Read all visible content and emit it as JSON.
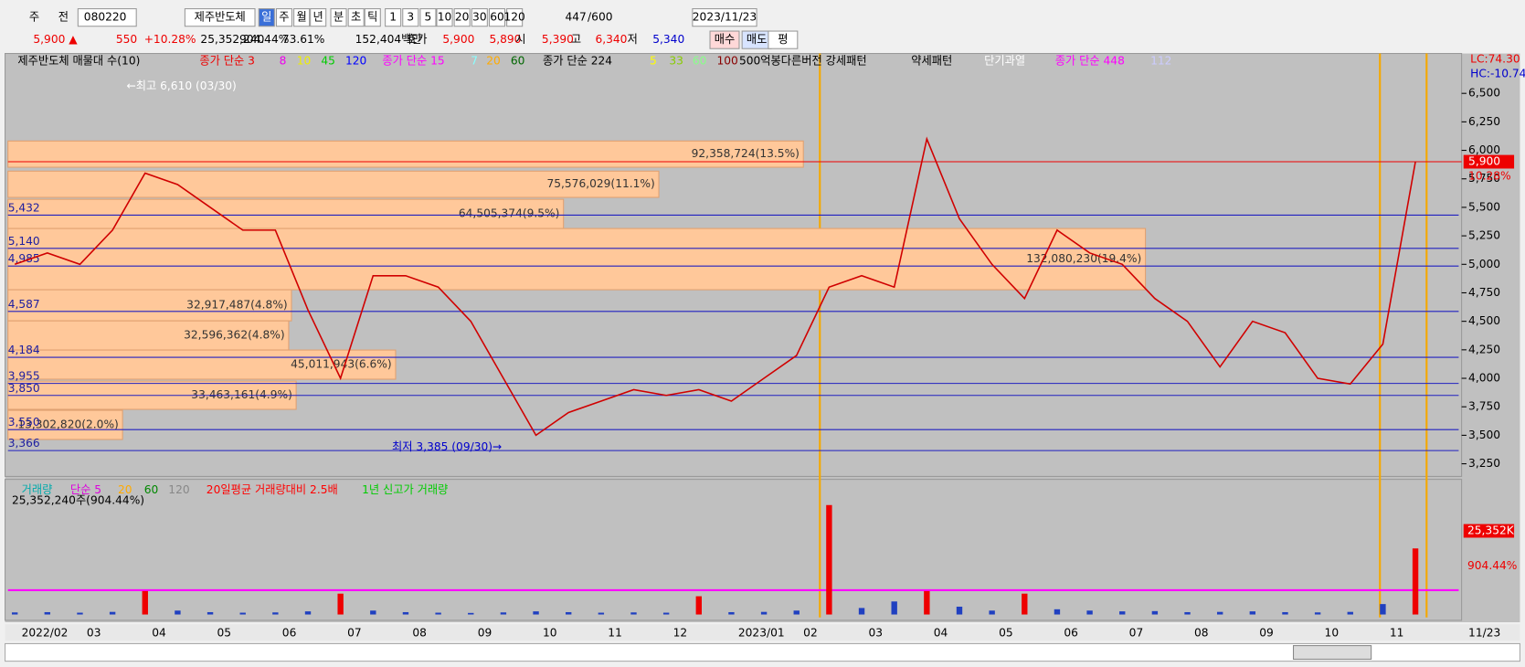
{
  "toolbar": {
    "items": [
      "주",
      "전",
      "080220",
      "제주반도체",
      "일",
      "주",
      "월",
      "년",
      "분",
      "초",
      "틱",
      "1",
      "3",
      "5",
      "10",
      "20",
      "30",
      "60",
      "120",
      "447",
      "/600",
      "2023/11/23"
    ]
  },
  "quote_bar": {
    "items": [
      "5,900 ▲",
      "550",
      "+10.28%",
      "25,352,240",
      "904.44%",
      "73.61%",
      "152,404백만",
      "호가",
      "5,900",
      "5,890",
      "시",
      "5,390",
      "고",
      "6,340",
      "저",
      "5,340",
      "매수",
      "매도",
      "평"
    ]
  },
  "chart": {
    "type": "line",
    "legend": [
      "제주반도체 매물대 수(10)",
      "종가 단순 3",
      "8",
      "10",
      "45",
      "120",
      "종가 단순 15",
      "7",
      "20",
      "60",
      "종가 단순 224",
      "5",
      "33",
      "60",
      "100",
      "500억봉다른버전 강세패턴",
      "약세패턴",
      "단기과열",
      "종가 단순 448",
      "112"
    ],
    "ylim": [
      3139,
      6850
    ],
    "yticks": [
      {
        "value": 3250,
        "label": "3,250"
      },
      {
        "value": 3500,
        "label": "3,500"
      },
      {
        "value": 3750,
        "label": "3,750"
      },
      {
        "value": 4000,
        "label": "4,000"
      },
      {
        "value": 4250,
        "label": "4,250"
      },
      {
        "value": 4500,
        "label": "4,500"
      },
      {
        "value": 4750,
        "label": "4,750"
      },
      {
        "value": 5000,
        "label": "5,000"
      },
      {
        "value": 5250,
        "label": "5,250"
      },
      {
        "value": 5500,
        "label": "5,500"
      },
      {
        "value": 5750,
        "label": "5,750"
      },
      {
        "value": 6000,
        "label": "6,000"
      },
      {
        "value": 6250,
        "label": "6,250"
      },
      {
        "value": 6500,
        "label": "6,500"
      }
    ],
    "levels": [
      {
        "value": 5432,
        "label": "5,432"
      },
      {
        "value": 5140,
        "label": "5,140"
      },
      {
        "value": 4985,
        "label": "4,985"
      },
      {
        "value": 4587,
        "label": "4,587"
      },
      {
        "value": 4184,
        "label": "4,184"
      },
      {
        "value": 3955,
        "label": "3,955"
      },
      {
        "value": 3850,
        "label": "3,850"
      },
      {
        "value": 3550,
        "label": "3,550"
      },
      {
        "value": 3366,
        "label": "3,366"
      }
    ],
    "current": {
      "value": 5900,
      "label": "5,900",
      "change": "10.28%"
    },
    "indicators": {
      "lc": "LC:74.30",
      "hc": "HC:-10.74"
    },
    "months": [
      "2022/02",
      "03",
      "04",
      "05",
      "06",
      "07",
      "08",
      "09",
      "10",
      "11",
      "12",
      "2023/01",
      "02",
      "03",
      "04",
      "05",
      "06",
      "07",
      "08",
      "09",
      "10",
      "11"
    ],
    "end_date": "11/23",
    "close": {
      "color": "#d00000",
      "values": [
        5000,
        5100,
        5000,
        5300,
        5800,
        5700,
        5500,
        5300,
        5300,
        4600,
        4000,
        4900,
        4900,
        4800,
        4500,
        4000,
        3500,
        3700,
        3800,
        3900,
        3850,
        3900,
        3800,
        4000,
        4200,
        4800,
        4900,
        4800,
        6100,
        5400,
        5000,
        4700,
        5300,
        5100,
        5000,
        4700,
        4500,
        4100,
        4500,
        4400,
        4000,
        3950,
        4300,
        5900
      ]
    },
    "volume_profile": [
      {
        "value": 92358724,
        "label": "92,358,724(13.5%)"
      },
      {
        "value": 75576029,
        "label": "75,576,029(11.1%)"
      },
      {
        "value": 64505374,
        "label": "64,505,374(9.5%)"
      },
      {
        "value": 132080230,
        "label": "132,080,230(19.4%)"
      },
      {
        "value": 32917487,
        "label": "32,917,487(4.8%)"
      },
      {
        "value": 32596362,
        "label": "32,596,362(4.8%)"
      },
      {
        "value": 45011943,
        "label": "45,011,943(6.6%)"
      },
      {
        "value": 33463161,
        "label": "33,463,161(4.9%)"
      },
      {
        "value": 13302820,
        "label": "13,302,820(2.0%)"
      }
    ],
    "annotations": {
      "high": "←최고 6,610 (03/30)",
      "low": "최저 3,385 (09/30)→"
    },
    "volume": {
      "legend": [
        "거래량",
        "단순 5",
        "20",
        "60",
        "120",
        "20일평균 거래량대비 2.5배",
        "1년 신고가 거래량"
      ],
      "summary": "25,352,240주(904.44%)",
      "ylim": [
        0,
        50000
      ],
      "values": [
        800,
        900,
        700,
        1000,
        9000,
        1500,
        900,
        700,
        800,
        1200,
        8000,
        1500,
        900,
        700,
        600,
        800,
        1200,
        900,
        700,
        800,
        700,
        7000,
        900,
        1000,
        1500,
        42000,
        2500,
        5000,
        9000,
        3000,
        1500,
        8000,
        2000,
        1500,
        1200,
        1300,
        900,
        1000,
        1200,
        900,
        800,
        1000,
        4000,
        25352
      ],
      "current_label": "25,352K",
      "current_pct": "904.44%"
    }
  }
}
